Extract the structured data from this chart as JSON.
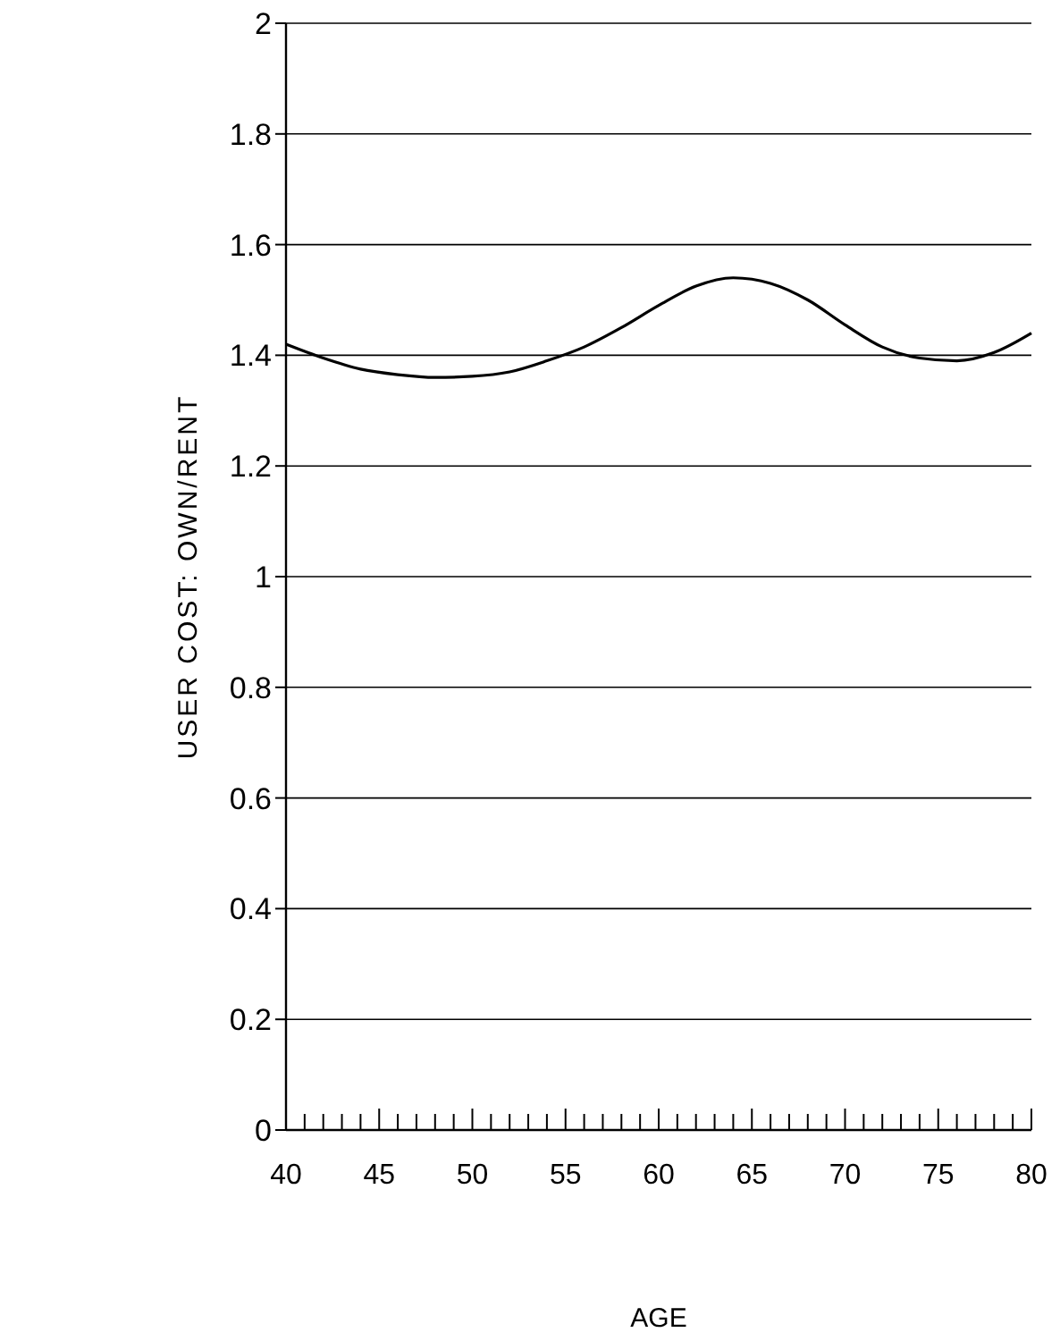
{
  "chart_data": {
    "type": "line",
    "xlabel": "AGE",
    "ylabel": "USER COST: OWN/RENT",
    "x": [
      40,
      42,
      44,
      46,
      48,
      50,
      52,
      54,
      56,
      58,
      60,
      62,
      64,
      66,
      68,
      70,
      72,
      74,
      76,
      78,
      80
    ],
    "series": [
      {
        "color": "#000000",
        "values": [
          1.42,
          1.395,
          1.375,
          1.365,
          1.36,
          1.362,
          1.37,
          1.39,
          1.415,
          1.45,
          1.49,
          1.525,
          1.54,
          1.53,
          1.5,
          1.455,
          1.415,
          1.395,
          1.39,
          1.405,
          1.44
        ]
      }
    ],
    "xlim": [
      40,
      80
    ],
    "xticks": [
      40,
      {
        "value": 41,
        "label": null
      },
      {
        "value": 42,
        "label": null
      },
      {
        "value": 43,
        "label": null
      },
      {
        "value": 44,
        "label": null
      },
      45,
      {
        "value": 46,
        "label": null
      },
      {
        "value": 47,
        "label": null
      },
      {
        "value": 48,
        "label": null
      },
      {
        "value": 49,
        "label": null
      },
      50,
      {
        "value": 51,
        "label": null
      },
      {
        "value": 52,
        "label": null
      },
      {
        "value": 53,
        "label": null
      },
      {
        "value": 54,
        "label": null
      },
      55,
      {
        "value": 56,
        "label": null
      },
      {
        "value": 57,
        "label": null
      },
      {
        "value": 58,
        "label": null
      },
      {
        "value": 59,
        "label": null
      },
      60,
      {
        "value": 61,
        "label": null
      },
      {
        "value": 62,
        "label": null
      },
      {
        "value": 63,
        "label": null
      },
      {
        "value": 64,
        "label": null
      },
      65,
      {
        "value": 66,
        "label": null
      },
      {
        "value": 67,
        "label": null
      },
      {
        "value": 68,
        "label": null
      },
      {
        "value": 69,
        "label": null
      },
      70,
      {
        "value": 71,
        "label": null
      },
      {
        "value": 72,
        "label": null
      },
      {
        "value": 73,
        "label": null
      },
      {
        "value": 74,
        "label": null
      },
      75,
      {
        "value": 76,
        "label": null
      },
      {
        "value": 77,
        "label": null
      },
      {
        "value": 78,
        "label": null
      },
      {
        "value": 79,
        "label": null
      },
      80
    ],
    "ylim": [
      0,
      2
    ],
    "yticks": [
      0,
      0.2,
      0.4,
      0.6,
      0.8,
      1,
      1.2,
      1.4,
      1.6,
      1.8,
      2
    ],
    "grid": "y",
    "marker": "none",
    "line_style": "solid"
  }
}
